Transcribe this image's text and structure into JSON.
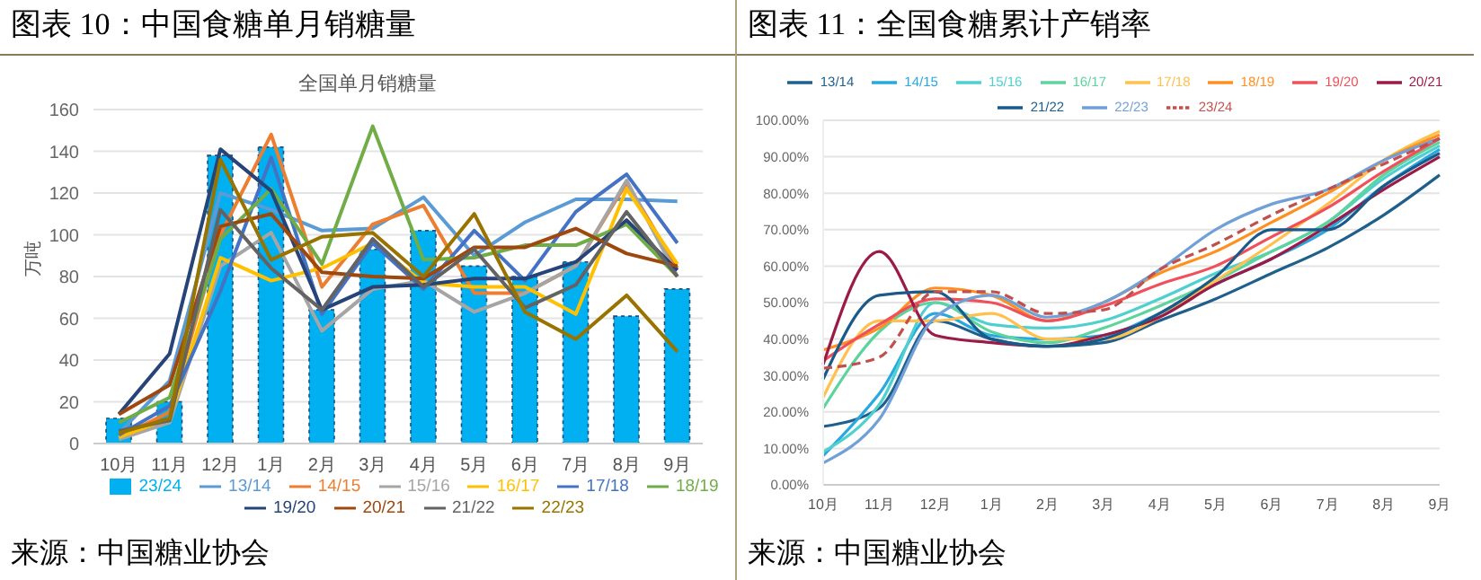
{
  "chart_data": [
    {
      "type": "line",
      "title": "图表 10：中国食糖单月销糖量",
      "subtitle": "全国单月销糖量",
      "ylabel": "万吨",
      "categories": [
        "10月",
        "11月",
        "12月",
        "1月",
        "2月",
        "3月",
        "4月",
        "5月",
        "6月",
        "7月",
        "8月",
        "9月"
      ],
      "ylim": [
        0,
        160
      ],
      "yticks": [
        0,
        20,
        40,
        60,
        80,
        100,
        120,
        140,
        160
      ],
      "grid": "y",
      "legend": "bottom",
      "marker": "none",
      "annotations": [
        "来源：中国糖业协会"
      ],
      "series": [
        {
          "name": "23/24",
          "type": "bar",
          "color": "#00b0f0",
          "values": [
            12,
            20,
            138,
            142,
            64,
            93,
            102,
            85,
            80,
            87,
            61,
            74
          ]
        },
        {
          "name": "13/14",
          "color": "#5b9bd5",
          "values": [
            5,
            30,
            120,
            112,
            102,
            103,
            118,
            90,
            106,
            117,
            117,
            116
          ]
        },
        {
          "name": "14/15",
          "color": "#ed7d31",
          "values": [
            3,
            15,
            100,
            148,
            75,
            105,
            114,
            72,
            72,
            85,
            125,
            84
          ]
        },
        {
          "name": "15/16",
          "color": "#a5a5a5",
          "values": [
            2,
            10,
            85,
            101,
            54,
            74,
            78,
            63,
            72,
            85,
            126,
            80
          ]
        },
        {
          "name": "16/17",
          "color": "#ffc000",
          "values": [
            3,
            12,
            89,
            78,
            84,
            96,
            77,
            75,
            75,
            62,
            122,
            86
          ]
        },
        {
          "name": "17/18",
          "color": "#4472c4",
          "values": [
            4,
            18,
            73,
            137,
            62,
            96,
            74,
            102,
            78,
            111,
            129,
            96
          ]
        },
        {
          "name": "18/19",
          "color": "#70ad47",
          "values": [
            10,
            22,
            98,
            122,
            86,
            152,
            88,
            89,
            95,
            95,
            105,
            80
          ]
        },
        {
          "name": "19/20",
          "color": "#264478",
          "values": [
            14,
            43,
            141,
            121,
            64,
            75,
            76,
            79,
            79,
            87,
            107,
            83
          ]
        },
        {
          "name": "20/21",
          "color": "#9e480e",
          "values": [
            14,
            28,
            104,
            110,
            82,
            80,
            79,
            94,
            94,
            103,
            91,
            85
          ]
        },
        {
          "name": "21/22",
          "color": "#636363",
          "values": [
            6,
            11,
            112,
            84,
            64,
            98,
            75,
            93,
            65,
            76,
            111,
            80
          ]
        },
        {
          "name": "22/23",
          "color": "#997300",
          "values": [
            5,
            12,
            136,
            88,
            99,
            101,
            80,
            110,
            63,
            50,
            71,
            44
          ]
        }
      ]
    },
    {
      "type": "line",
      "title": "图表 11：全国食糖累计产销率",
      "categories": [
        "10月",
        "11月",
        "12月",
        "1月",
        "2月",
        "3月",
        "4月",
        "5月",
        "6月",
        "7月",
        "8月",
        "9月"
      ],
      "ylim": [
        0,
        100
      ],
      "yticks": [
        {
          "value": 0,
          "label": "0.00%"
        },
        {
          "value": 10,
          "label": "10.00%"
        },
        {
          "value": 20,
          "label": "20.00%"
        },
        {
          "value": 30,
          "label": "30.00%"
        },
        {
          "value": 40,
          "label": "40.00%"
        },
        {
          "value": 50,
          "label": "50.00%"
        },
        {
          "value": 60,
          "label": "60.00%"
        },
        {
          "value": 70,
          "label": "70.00%"
        },
        {
          "value": 80,
          "label": "80.00%"
        },
        {
          "value": 90,
          "label": "90.00%"
        },
        {
          "value": 100,
          "label": "100.00%"
        }
      ],
      "grid": "y",
      "legend": "top",
      "marker": "none",
      "annotations": [
        "来源：中国糖业协会"
      ],
      "series": [
        {
          "name": "13/14",
          "color": "#1f5f8b",
          "values": [
            16,
            21,
            45,
            40,
            38,
            39,
            45,
            51,
            58,
            65,
            74,
            85
          ]
        },
        {
          "name": "14/15",
          "color": "#29a8e0",
          "values": [
            8,
            25,
            47,
            41,
            40,
            41,
            47,
            55,
            62,
            70,
            82,
            92
          ]
        },
        {
          "name": "15/16",
          "color": "#4fd0d0",
          "values": [
            9,
            22,
            50,
            44,
            43,
            45,
            51,
            58,
            64,
            72,
            84,
            93
          ]
        },
        {
          "name": "16/17",
          "color": "#5dd39e",
          "values": [
            21,
            42,
            50,
            42,
            39,
            43,
            49,
            56,
            64,
            72,
            85,
            94
          ]
        },
        {
          "name": "17/18",
          "color": "#ffc04d",
          "values": [
            24,
            45,
            45,
            47,
            40,
            40,
            46,
            56,
            66,
            77,
            89,
            97
          ]
        },
        {
          "name": "18/19",
          "color": "#ff9020",
          "values": [
            37,
            43,
            54,
            52,
            45,
            50,
            58,
            64,
            72,
            80,
            89,
            96
          ]
        },
        {
          "name": "19/20",
          "color": "#f0505a",
          "values": [
            34,
            44,
            51,
            50,
            45,
            49,
            55,
            60,
            68,
            76,
            86,
            95
          ]
        },
        {
          "name": "20/21",
          "color": "#9b1b47",
          "values": [
            33,
            64,
            41,
            39,
            38,
            41,
            46,
            55,
            62,
            71,
            81,
            90
          ]
        },
        {
          "name": "21/22",
          "color": "#1a5a8a",
          "values": [
            29,
            52,
            53,
            40,
            38,
            40,
            47,
            57,
            70,
            70,
            82,
            91
          ]
        },
        {
          "name": "22/23",
          "color": "#6fa0d8",
          "values": [
            6,
            18,
            46,
            52,
            46,
            50,
            59,
            70,
            77,
            81,
            89,
            95
          ]
        },
        {
          "name": "23/24",
          "color": "#c0504d",
          "line_style": "dashed",
          "values": [
            32,
            35,
            53,
            53,
            47,
            48,
            59,
            66,
            74,
            81,
            88,
            95
          ]
        }
      ]
    }
  ]
}
